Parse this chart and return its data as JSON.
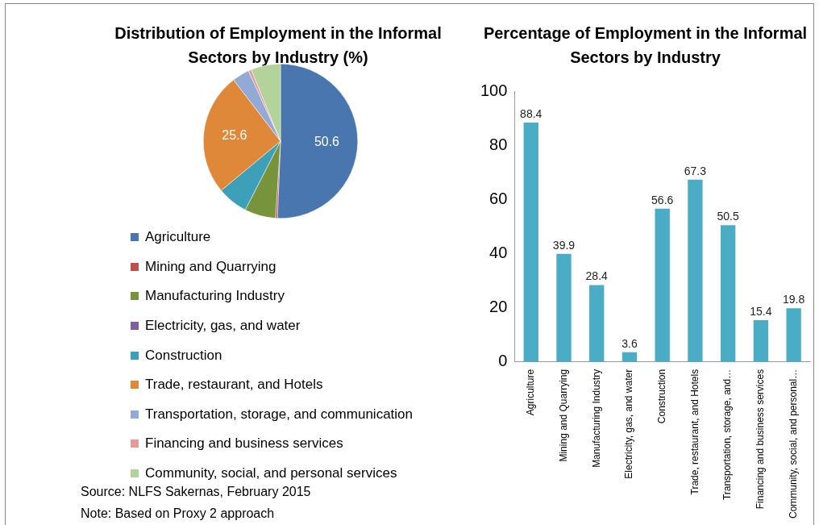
{
  "chart_data": [
    {
      "type": "pie",
      "title": "Distribution of Employment in the Informal Sectors by Industry (%)",
      "categories": [
        "Agriculture",
        "Mining and Quarrying",
        "Manufacturing Industry",
        "Electricity, gas, and water",
        "Construction",
        "Trade, restaurant, and Hotels",
        "Transportation, storage, and communication",
        "Financing and business services",
        "Community, social, and personal services"
      ],
      "values": [
        50.6,
        0.4,
        6.5,
        null,
        6.4,
        25.6,
        3.6,
        0.6,
        6.2
      ],
      "colors": [
        "#4a76b0",
        "#c0504d",
        "#77933c",
        "#7f5fa0",
        "#3ea0b8",
        "#e0883a",
        "#93a9d6",
        "#e39a9a",
        "#b3d39a"
      ],
      "value_labels": [
        "50.6",
        null,
        null,
        null,
        null,
        "25.6",
        null,
        null,
        null
      ],
      "legend": "bottom",
      "annotations": [
        "Source: NLFS Sakernas, February 2015",
        "Note: Based on Proxy 2 approach"
      ]
    },
    {
      "type": "bar",
      "title": "Percentage of Employment in the Informal Sectors by Industry",
      "categories": [
        "Agriculture",
        "Mining and Quarrying",
        "Manufacturing Industry",
        "Electricity, gas, and water",
        "Construction",
        "Trade, restaurant, and Hotels",
        "Transportation, storage, and…",
        "Financing and business services",
        "Community, social, and personal…"
      ],
      "values": [
        88.4,
        39.9,
        28.4,
        3.6,
        56.6,
        67.3,
        50.5,
        15.4,
        19.8
      ],
      "color": "#4bacc6",
      "ylim": [
        0,
        100
      ],
      "yticks": [
        0,
        20,
        40,
        60,
        80,
        100
      ],
      "data_labels": true
    }
  ]
}
